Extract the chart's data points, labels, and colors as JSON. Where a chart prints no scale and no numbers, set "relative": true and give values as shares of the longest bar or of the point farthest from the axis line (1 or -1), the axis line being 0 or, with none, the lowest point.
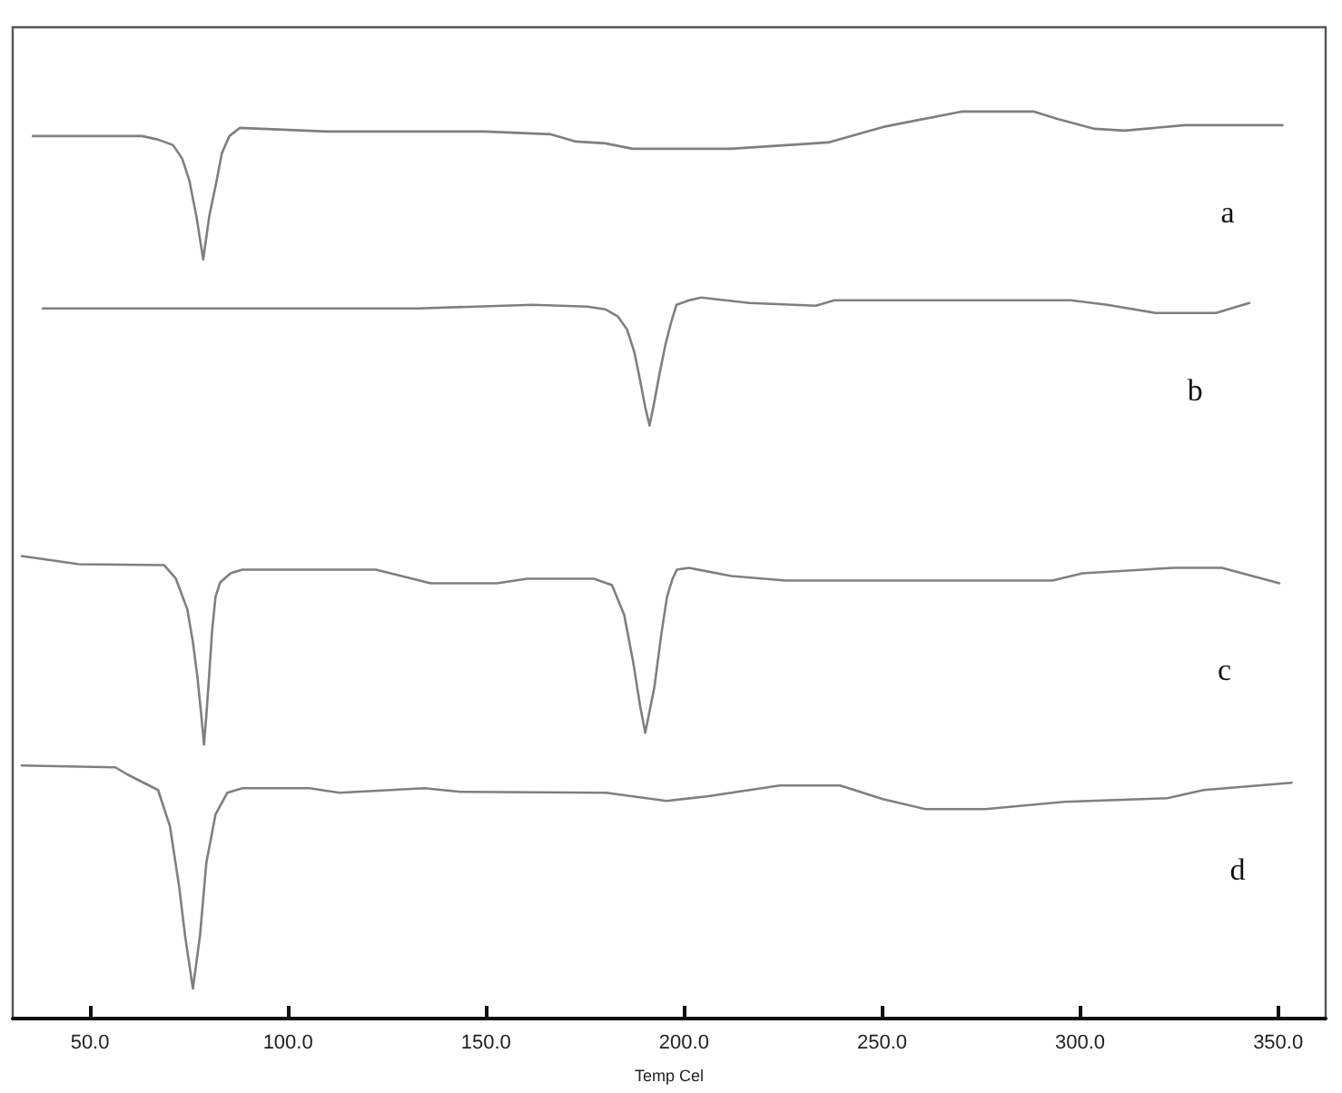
{
  "chart_data": {
    "type": "line",
    "xlabel": "Temp Cel",
    "relative": true,
    "xlim": [
      30.5,
      362
    ],
    "xticks": [
      {
        "value": 50,
        "label": "50.0"
      },
      {
        "value": 100,
        "label": "100.0"
      },
      {
        "value": 150,
        "label": "150.0"
      },
      {
        "value": 200,
        "label": "200.0"
      },
      {
        "value": 250,
        "label": "250.0"
      },
      {
        "value": 300,
        "label": "300.0"
      },
      {
        "value": 350,
        "label": "350.0"
      }
    ],
    "marker": "none",
    "line_style": "solid",
    "series": [
      {
        "name": "a",
        "color": "#7f7f7f",
        "x": [
          35.6,
          63.2,
          67.3,
          71.0,
          73.3,
          75.1,
          76.9,
          78.6,
          80.1,
          82.0,
          83.3,
          85.2,
          87.8,
          110.0,
          149.7,
          166.4,
          172.7,
          180.1,
          187.0,
          197.1,
          211.8,
          236.4,
          250.2,
          270.0,
          288.4,
          294.3,
          303.7,
          311.3,
          326.4,
          351.1
        ],
        "values": [
          0.973,
          0.973,
          0.969,
          0.963,
          0.948,
          0.924,
          0.884,
          0.837,
          0.884,
          0.924,
          0.954,
          0.973,
          0.982,
          0.978,
          0.978,
          0.975,
          0.967,
          0.965,
          0.959,
          0.959,
          0.959,
          0.966,
          0.983,
          1.0,
          1.0,
          0.992,
          0.981,
          0.979,
          0.985,
          0.985
        ]
      },
      {
        "name": "b",
        "color": "#7f7f7f",
        "x": [
          38.1,
          132.9,
          161.8,
          175.6,
          180.1,
          183.3,
          185.6,
          187.5,
          188.9,
          190.2,
          191.3,
          192.5,
          193.9,
          195.3,
          196.7,
          198.1,
          201.3,
          204.3,
          216.5,
          233.3,
          238.0,
          297.6,
          306.8,
          319.0,
          334.3,
          342.7
        ],
        "values": [
          0.783,
          0.783,
          0.787,
          0.785,
          0.782,
          0.774,
          0.76,
          0.734,
          0.704,
          0.674,
          0.654,
          0.68,
          0.713,
          0.743,
          0.767,
          0.787,
          0.792,
          0.795,
          0.789,
          0.786,
          0.792,
          0.792,
          0.787,
          0.778,
          0.778,
          0.789
        ]
      },
      {
        "name": "c",
        "color": "#7f7f7f",
        "x": [
          32.8,
          47.2,
          68.7,
          71.7,
          74.6,
          76.0,
          77.1,
          78.1,
          78.8,
          79.4,
          80.1,
          80.8,
          81.7,
          82.9,
          85.5,
          88.5,
          122.2,
          136.0,
          152.8,
          160.4,
          177.2,
          181.8,
          184.9,
          187.2,
          188.9,
          190.2,
          192.5,
          194.3,
          195.7,
          197.1,
          198.2,
          201.2,
          211.9,
          225.7,
          245.6,
          293.0,
          300.6,
          323.6,
          335.8,
          350.3
        ],
        "values": [
          0.51,
          0.501,
          0.5,
          0.485,
          0.451,
          0.415,
          0.378,
          0.335,
          0.302,
          0.335,
          0.378,
          0.425,
          0.465,
          0.481,
          0.491,
          0.495,
          0.495,
          0.48,
          0.48,
          0.485,
          0.485,
          0.478,
          0.445,
          0.392,
          0.345,
          0.315,
          0.365,
          0.425,
          0.465,
          0.485,
          0.495,
          0.497,
          0.488,
          0.483,
          0.483,
          0.483,
          0.491,
          0.497,
          0.497,
          0.48
        ]
      },
      {
        "name": "d",
        "color": "#7f7f7f",
        "x": [
          32.8,
          56.4,
          59.5,
          67.2,
          70.2,
          72.5,
          74.0,
          76.0,
          77.8,
          79.4,
          81.7,
          84.7,
          88.5,
          105.4,
          113.0,
          134.4,
          143.6,
          180.3,
          195.6,
          205.8,
          224.2,
          239.4,
          250.2,
          260.9,
          276.1,
          296.0,
          322.0,
          331.2,
          353.4
        ],
        "values": [
          0.279,
          0.277,
          0.269,
          0.252,
          0.212,
          0.146,
          0.092,
          0.033,
          0.092,
          0.172,
          0.225,
          0.249,
          0.254,
          0.254,
          0.249,
          0.254,
          0.25,
          0.249,
          0.24,
          0.245,
          0.257,
          0.257,
          0.242,
          0.231,
          0.231,
          0.239,
          0.243,
          0.252,
          0.26
        ]
      }
    ]
  }
}
